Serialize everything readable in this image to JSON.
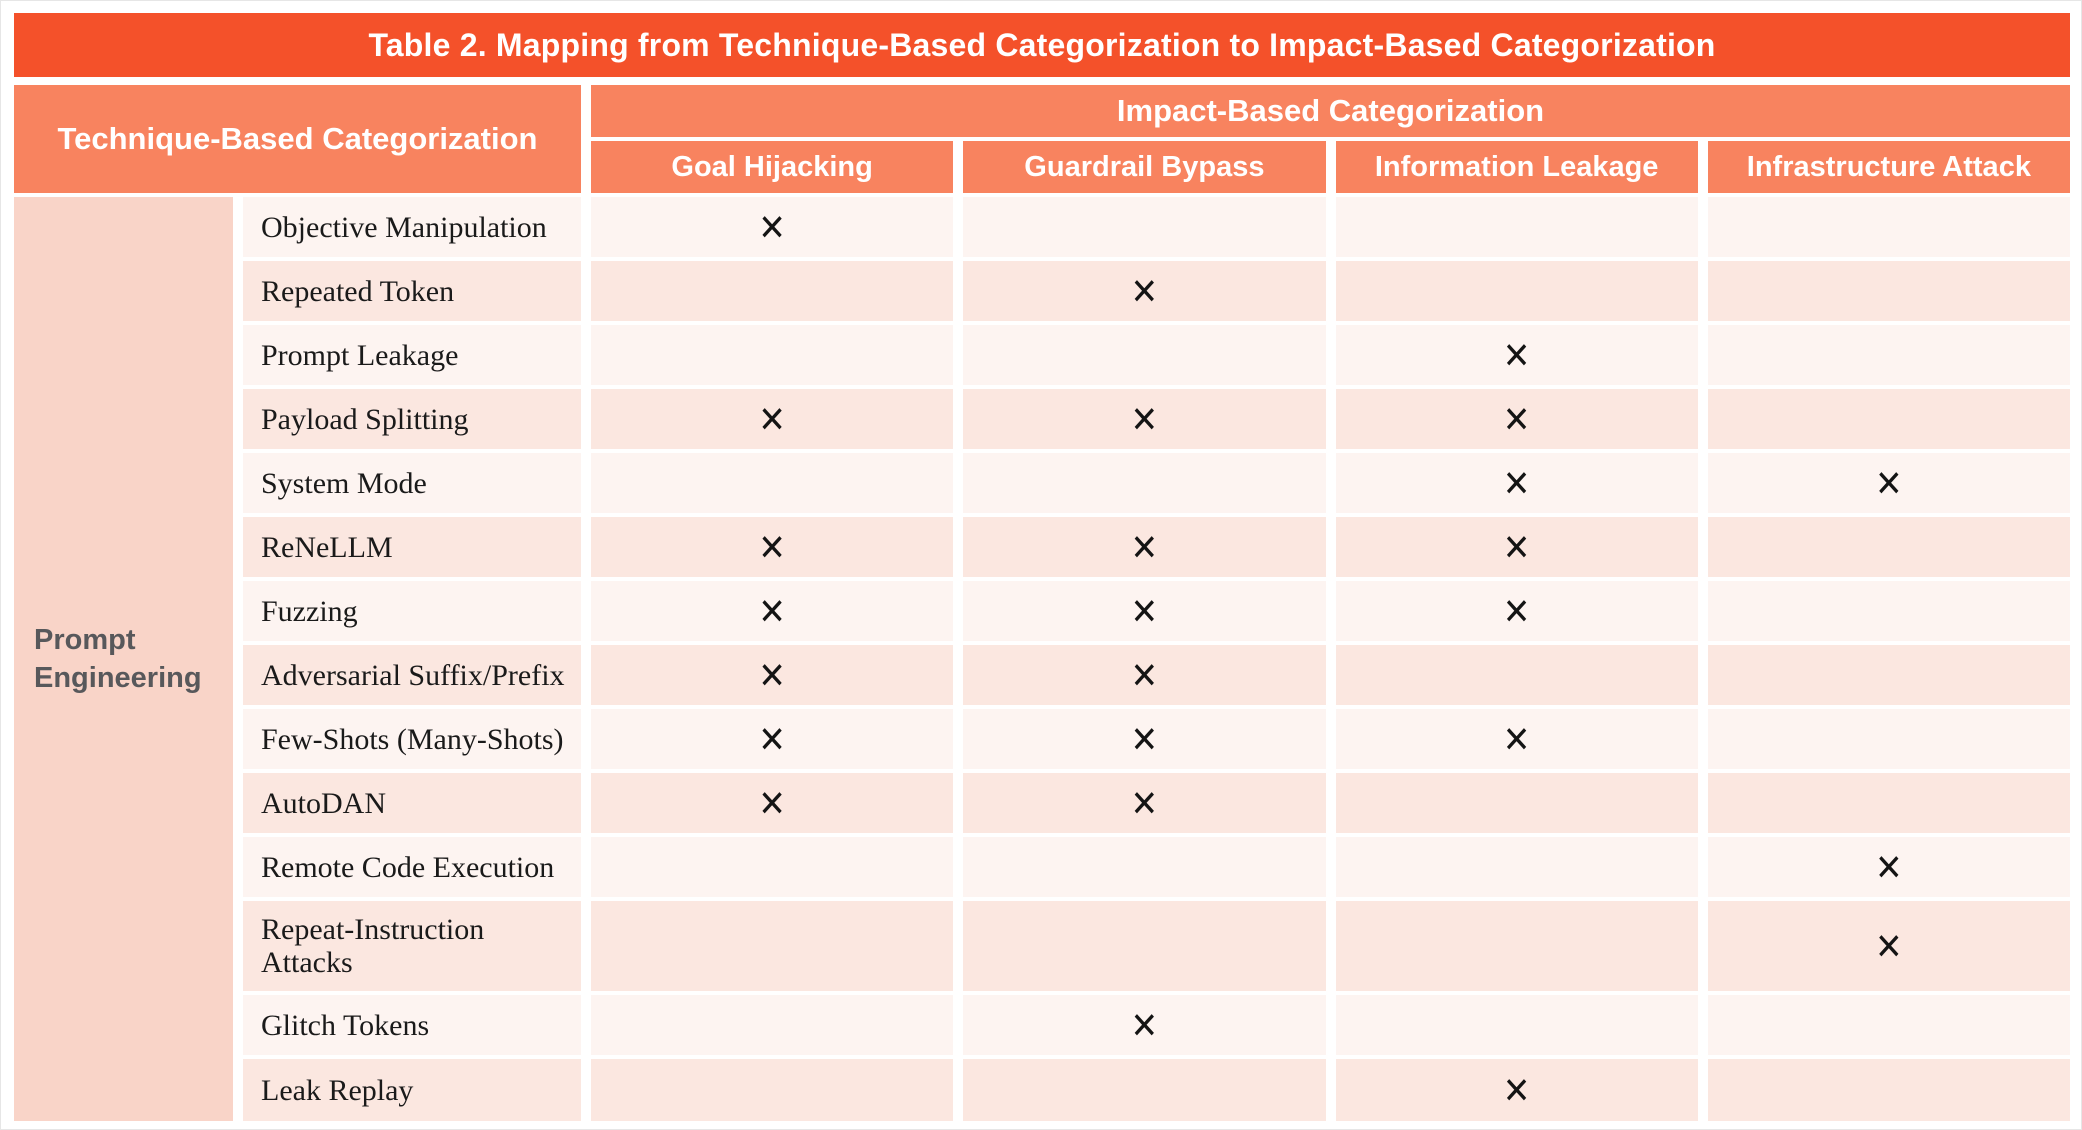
{
  "title": "Table 2. Mapping from Technique-Based Categorization to Impact-Based Categorization",
  "table": {
    "technique_header": "Technique-Based Categorization",
    "impact_header": "Impact-Based Categorization",
    "impact_columns": [
      "Goal Hijacking",
      "Guardrail Bypass",
      "Information Leakage",
      "Infrastructure Attack"
    ],
    "technique_group": "Prompt\nEngineering",
    "mark": "✕",
    "rows": [
      {
        "technique": "Objective Manipulation",
        "impacts": [
          true,
          false,
          false,
          false
        ]
      },
      {
        "technique": "Repeated Token",
        "impacts": [
          false,
          true,
          false,
          false
        ]
      },
      {
        "technique": "Prompt Leakage",
        "impacts": [
          false,
          false,
          true,
          false
        ]
      },
      {
        "technique": "Payload Splitting",
        "impacts": [
          true,
          true,
          true,
          false
        ]
      },
      {
        "technique": "System Mode",
        "impacts": [
          false,
          false,
          true,
          true
        ]
      },
      {
        "technique": "ReNeLLM",
        "impacts": [
          true,
          true,
          true,
          false
        ]
      },
      {
        "technique": "Fuzzing",
        "impacts": [
          true,
          true,
          true,
          false
        ]
      },
      {
        "technique": "Adversarial Suffix/Prefix",
        "impacts": [
          true,
          true,
          false,
          false
        ]
      },
      {
        "technique": "Few-Shots (Many-Shots)",
        "impacts": [
          true,
          true,
          true,
          false
        ]
      },
      {
        "technique": "AutoDAN",
        "impacts": [
          true,
          true,
          false,
          false
        ]
      },
      {
        "technique": "Remote Code Execution",
        "impacts": [
          false,
          false,
          false,
          true
        ]
      },
      {
        "technique": "Repeat-Instruction Attacks",
        "impacts": [
          false,
          false,
          false,
          true
        ]
      },
      {
        "technique": "Glitch Tokens",
        "impacts": [
          false,
          true,
          false,
          false
        ]
      },
      {
        "technique": "Leak Replay",
        "impacts": [
          false,
          false,
          true,
          false
        ]
      }
    ]
  },
  "colors": {
    "title_bar_bg": "#F4512A",
    "header_bg": "#F8835F",
    "header_text": "#FFFFFF",
    "group_bg": "#F9D4C8",
    "group_text": "#58585B",
    "row_light_bg": "#FDF4F1",
    "row_dark_bg": "#FBE7E0",
    "body_text": "#1A1A1A",
    "mark_color": "#141414"
  }
}
